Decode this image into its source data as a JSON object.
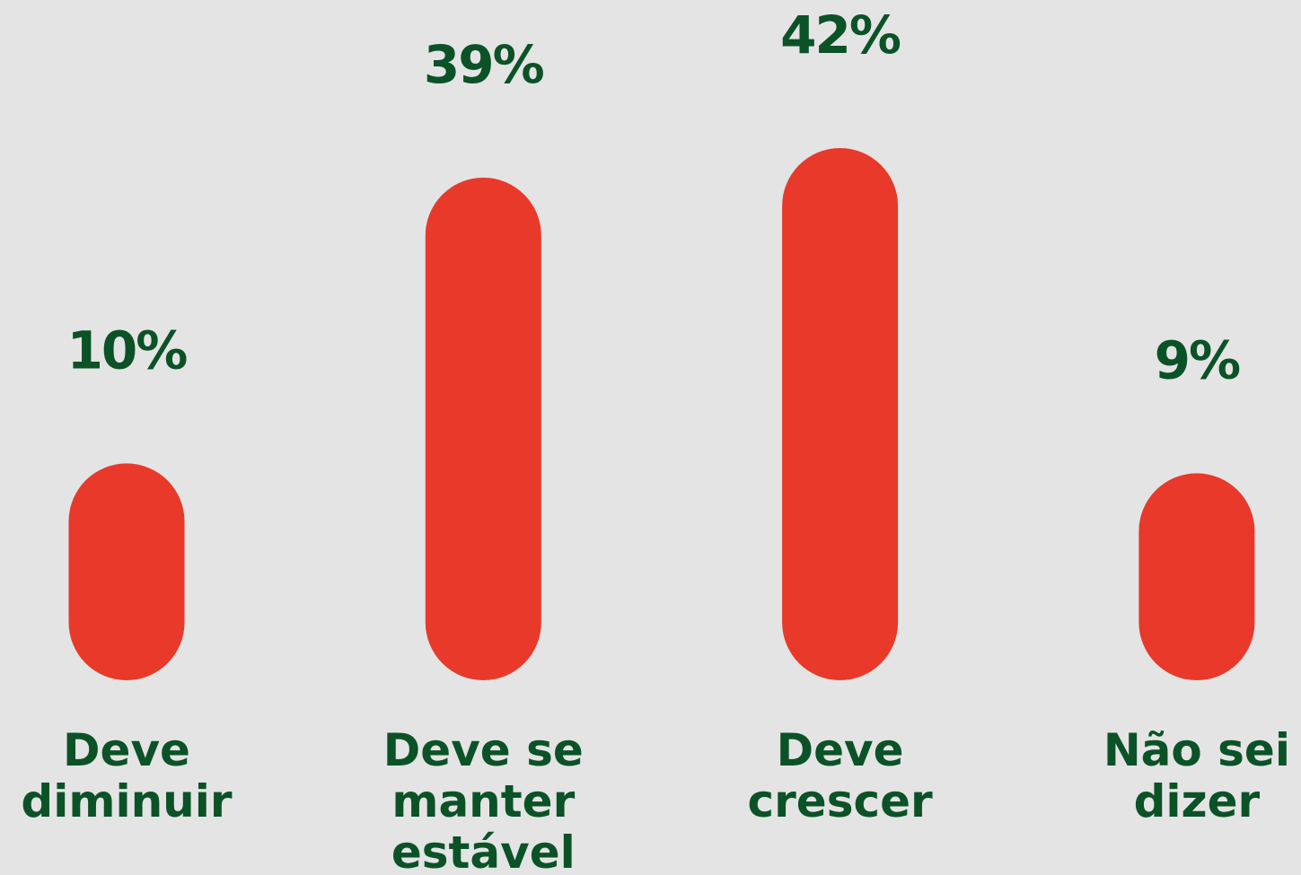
{
  "chart_data": {
    "type": "bar",
    "categories": [
      "Deve diminuir",
      "Deve se manter estável",
      "Deve crescer",
      "Não sei dizer"
    ],
    "values": [
      10,
      39,
      42,
      9
    ],
    "value_labels": [
      "10%",
      "39%",
      "42%",
      "9%"
    ],
    "color": "#e8392a",
    "ylim": [
      -12,
      42
    ]
  }
}
